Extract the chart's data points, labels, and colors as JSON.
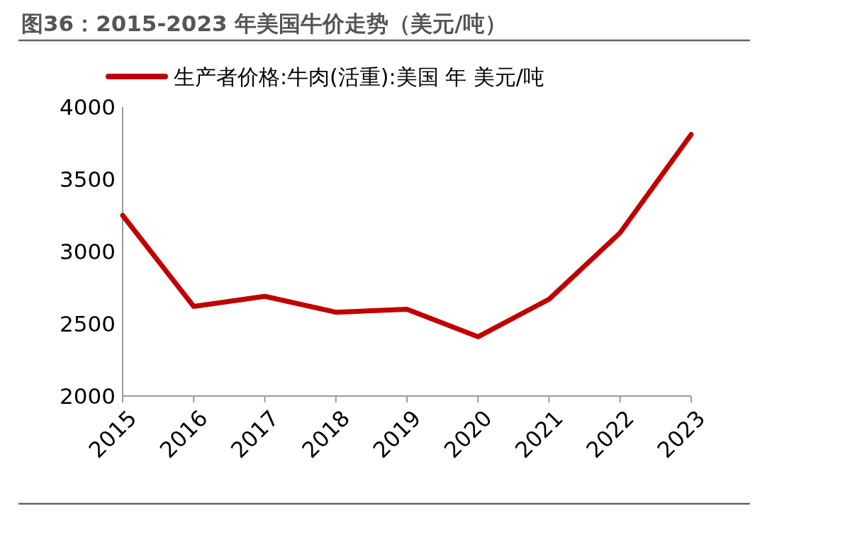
{
  "chart_data": {
    "type": "line",
    "title": "图36：2015-2023 年美国牛价走势（美元/吨）",
    "categories": [
      "2015",
      "2016",
      "2017",
      "2018",
      "2019",
      "2020",
      "2021",
      "2022",
      "2023"
    ],
    "series": [
      {
        "name": "生产者价格:牛肉(活重):美国 年 美元/吨",
        "color": "#c00000",
        "values": [
          3250,
          2620,
          2690,
          2580,
          2600,
          2410,
          2670,
          3130,
          3810
        ]
      }
    ],
    "ylim": [
      2000,
      4000
    ],
    "yticks": [
      2000,
      2500,
      3000,
      3500,
      4000
    ],
    "grid": false,
    "legend": "top",
    "marker": "none",
    "line_style": "solid"
  }
}
